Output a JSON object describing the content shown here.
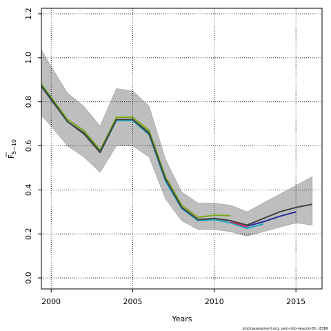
{
  "chart_data": {
    "type": "line",
    "xlabel": "Years",
    "ylabel": "F",
    "ylabel_sub": "5−10",
    "xlim": [
      1999.4,
      2016.6
    ],
    "ylim": [
      -0.05,
      1.225
    ],
    "x_ticks": [
      2000,
      2005,
      2010,
      2015
    ],
    "x_tick_labels": [
      "2000",
      "2005",
      "2010",
      "2015"
    ],
    "y_ticks": [
      0.0,
      0.2,
      0.4,
      0.6,
      0.8,
      1.0,
      1.2
    ],
    "y_tick_labels": [
      "0.0",
      "0.2",
      "0.4",
      "0.6",
      "0.8",
      "1.0",
      "1.2"
    ],
    "grid": true,
    "confidence_band": {
      "x": [
        1999,
        2000,
        2001,
        2002,
        2003,
        2004,
        2005,
        2006,
        2007,
        2008,
        2009,
        2010,
        2011,
        2012,
        2013,
        2014,
        2015,
        2016
      ],
      "upper": [
        1.09,
        0.96,
        0.84,
        0.78,
        0.69,
        0.86,
        0.85,
        0.78,
        0.54,
        0.39,
        0.34,
        0.34,
        0.33,
        0.3,
        0.34,
        0.38,
        0.42,
        0.46
      ],
      "lower": [
        0.77,
        0.69,
        0.6,
        0.55,
        0.48,
        0.6,
        0.6,
        0.55,
        0.36,
        0.26,
        0.22,
        0.22,
        0.21,
        0.19,
        0.21,
        0.23,
        0.25,
        0.24
      ],
      "color": "#bebebe"
    },
    "series": [
      {
        "color": "#7ca818",
        "x": [
          1999,
          2000,
          2001,
          2002,
          2003,
          2004,
          2005,
          2006,
          2007,
          2008,
          2009,
          2010,
          2011
        ],
        "values": [
          0.92,
          0.82,
          0.72,
          0.67,
          0.58,
          0.73,
          0.73,
          0.67,
          0.46,
          0.33,
          0.275,
          0.285,
          0.283
        ]
      },
      {
        "color": "#1aa8c8",
        "x": [
          1999,
          2000,
          2001,
          2002,
          2003,
          2004,
          2005,
          2006,
          2007,
          2008,
          2009,
          2010,
          2011,
          2012,
          2013
        ],
        "values": [
          0.91,
          0.81,
          0.71,
          0.66,
          0.57,
          0.715,
          0.715,
          0.65,
          0.44,
          0.315,
          0.26,
          0.265,
          0.25,
          0.225,
          0.245
        ]
      },
      {
        "color": "#2e6b3a",
        "x": [
          1999,
          2000,
          2001,
          2002,
          2003,
          2004,
          2005,
          2006,
          2007,
          2008,
          2009,
          2010,
          2011,
          2012
        ],
        "values": [
          0.915,
          0.815,
          0.71,
          0.66,
          0.575,
          0.72,
          0.72,
          0.66,
          0.45,
          0.32,
          0.265,
          0.27,
          0.26,
          0.24
        ]
      },
      {
        "color": "#cc2a5a",
        "x": [
          2011,
          2012
        ],
        "values": [
          0.255,
          0.232
        ]
      },
      {
        "color": "#2a2a9c",
        "x": [
          2012,
          2013,
          2014,
          2015
        ],
        "values": [
          0.235,
          0.255,
          0.28,
          0.3
        ]
      },
      {
        "color": "#444444",
        "x": [
          1999,
          2000,
          2001,
          2002,
          2003,
          2004,
          2005,
          2006,
          2007,
          2008,
          2009,
          2010,
          2011,
          2012,
          2013,
          2014,
          2015,
          2016
        ],
        "values": [
          0.91,
          0.81,
          0.71,
          0.655,
          0.57,
          0.72,
          0.72,
          0.655,
          0.45,
          0.32,
          0.265,
          0.27,
          0.26,
          0.24,
          0.27,
          0.3,
          0.32,
          0.335
        ]
      }
    ]
  },
  "footer": "stockassessment.org, sam-tmb-neacod-05, r8386"
}
